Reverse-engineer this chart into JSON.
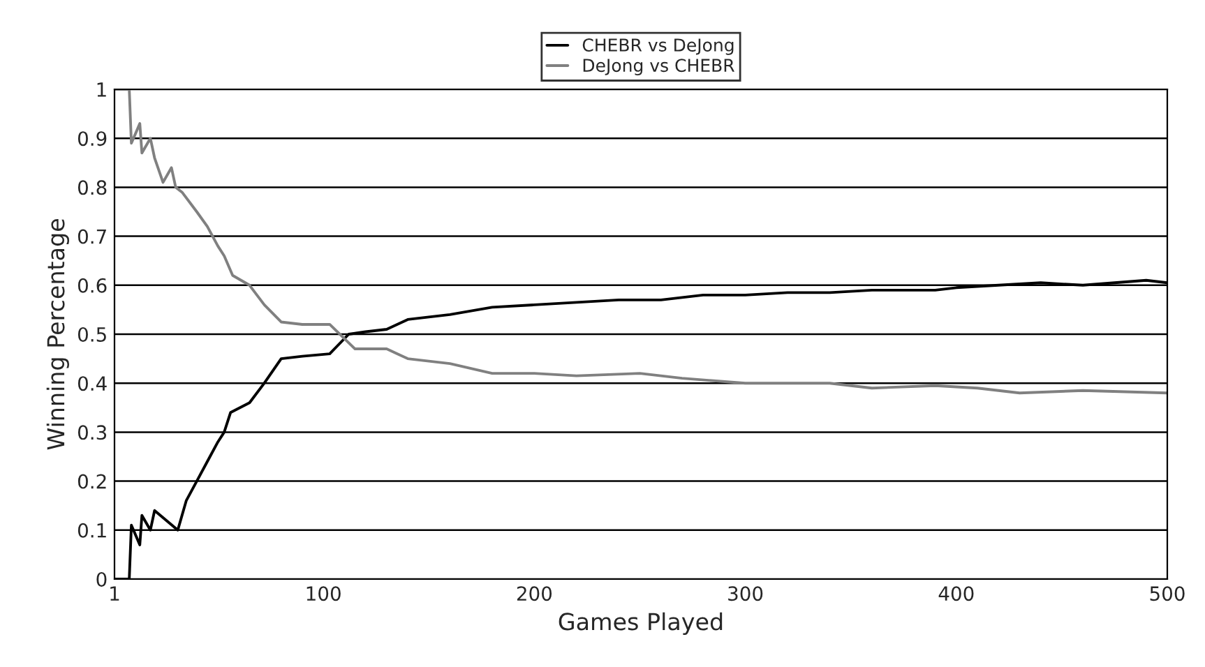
{
  "chart_data": {
    "type": "line",
    "xlabel": "Games Played",
    "ylabel": "Winning Percentage",
    "series": [
      {
        "name": "CHEBR vs DeJong",
        "color": "#000000",
        "x": [
          1,
          8,
          9,
          13,
          14,
          18,
          20,
          31,
          35,
          40,
          45,
          50,
          53,
          56,
          65,
          72,
          80,
          90,
          103,
          112,
          120,
          130,
          140,
          160,
          180,
          200,
          220,
          240,
          260,
          280,
          300,
          320,
          340,
          360,
          390,
          400,
          420,
          440,
          460,
          490,
          500
        ],
        "values": [
          0,
          0,
          0.11,
          0.07,
          0.13,
          0.1,
          0.14,
          0.1,
          0.16,
          0.2,
          0.24,
          0.28,
          0.3,
          0.34,
          0.36,
          0.4,
          0.45,
          0.455,
          0.46,
          0.5,
          0.505,
          0.51,
          0.53,
          0.54,
          0.555,
          0.56,
          0.565,
          0.57,
          0.57,
          0.58,
          0.58,
          0.585,
          0.585,
          0.59,
          0.59,
          0.595,
          0.6,
          0.605,
          0.6,
          0.61,
          0.605
        ]
      },
      {
        "name": "DeJong vs CHEBR",
        "color": "#808080",
        "x": [
          1,
          8,
          9,
          13,
          14,
          18,
          20,
          24,
          28,
          30,
          33,
          40,
          45,
          50,
          53,
          57,
          65,
          72,
          80,
          90,
          103,
          115,
          130,
          140,
          160,
          180,
          200,
          220,
          250,
          270,
          300,
          340,
          360,
          390,
          410,
          430,
          460,
          500
        ],
        "values": [
          1,
          1,
          0.89,
          0.93,
          0.87,
          0.9,
          0.86,
          0.81,
          0.84,
          0.8,
          0.79,
          0.75,
          0.72,
          0.68,
          0.66,
          0.62,
          0.6,
          0.56,
          0.525,
          0.52,
          0.52,
          0.47,
          0.47,
          0.45,
          0.44,
          0.42,
          0.42,
          0.415,
          0.42,
          0.41,
          0.4,
          0.4,
          0.39,
          0.395,
          0.39,
          0.38,
          0.385,
          0.38
        ]
      }
    ],
    "xlim": [
      1,
      500
    ],
    "xticks": [
      1,
      100,
      200,
      300,
      400,
      500
    ],
    "ylim": [
      0,
      1
    ],
    "yticks": [
      0,
      0.1,
      0.2,
      0.3,
      0.4,
      0.5,
      0.6,
      0.7,
      0.8,
      0.9,
      1
    ],
    "grid": "y",
    "legend": "top",
    "marker": "none",
    "line_style": "solid"
  }
}
